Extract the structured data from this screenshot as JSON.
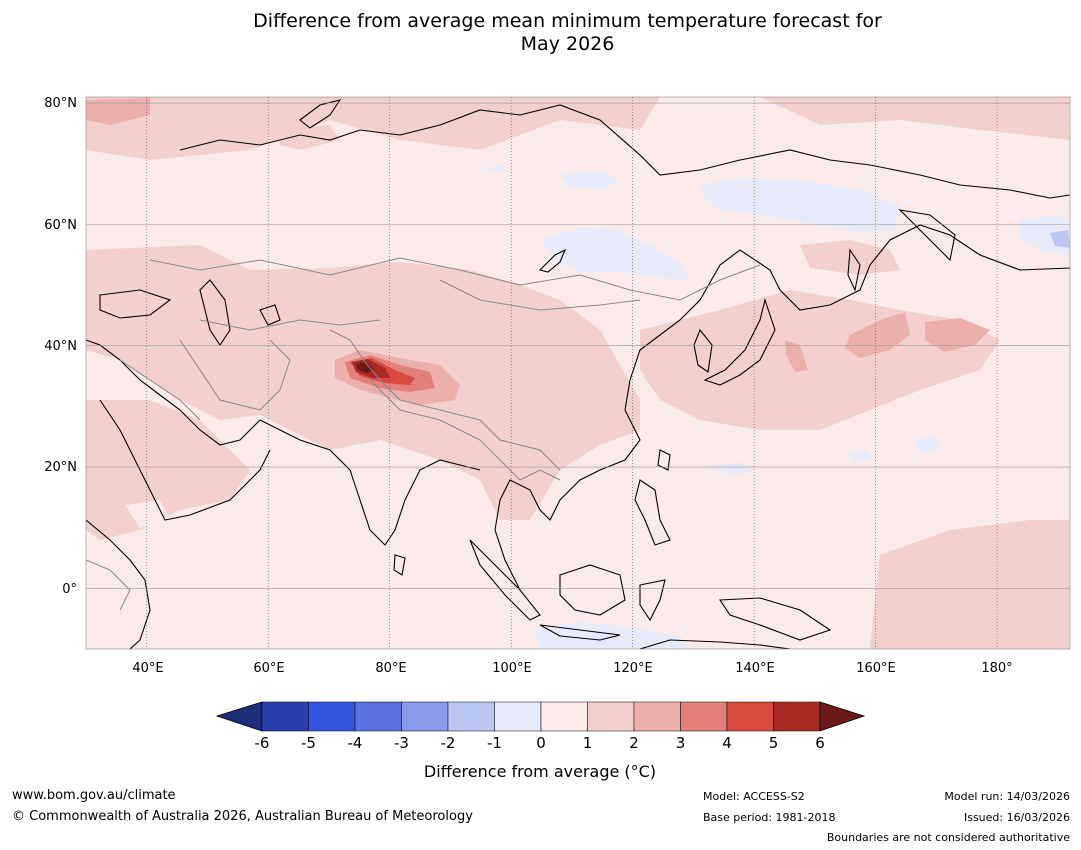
{
  "title": {
    "line1": "Difference from average mean minimum temperature forecast for",
    "line2": "May 2026"
  },
  "map": {
    "lat_labels": [
      "80°N",
      "60°N",
      "40°N",
      "20°N",
      "0°"
    ],
    "lon_labels": [
      "40°E",
      "60°E",
      "80°E",
      "100°E",
      "120°E",
      "140°E",
      "160°E",
      "180°"
    ],
    "extent": {
      "lon_min": 30,
      "lon_max": 192,
      "lat_min": -10,
      "lat_max": 81
    }
  },
  "colorbar": {
    "ticks": [
      "-6",
      "-5",
      "-4",
      "-3",
      "-2",
      "-1",
      "0",
      "1",
      "2",
      "3",
      "4",
      "5",
      "6"
    ],
    "colors": [
      "#1f2e7a",
      "#2a3eb0",
      "#3555e0",
      "#5b72e3",
      "#8a9ae9",
      "#bcc6f3",
      "#e7eaf9",
      "#fbeaea",
      "#f3d0cd",
      "#ebb0ab",
      "#e4807a",
      "#d84a40",
      "#a82a24",
      "#6b1a17"
    ],
    "label": "Difference from average (°C)"
  },
  "footer": {
    "website": "www.bom.gov.au/climate",
    "copyright": "© Commonwealth of Australia 2026, Australian Bureau of Meteorology",
    "model": "Model: ACCESS-S2",
    "base_period": "Base period: 1981-2018",
    "model_run": "Model run: 14/03/2026",
    "issued": "Issued: 16/03/2026",
    "disclaimer": "Boundaries are not considered authoritative"
  }
}
